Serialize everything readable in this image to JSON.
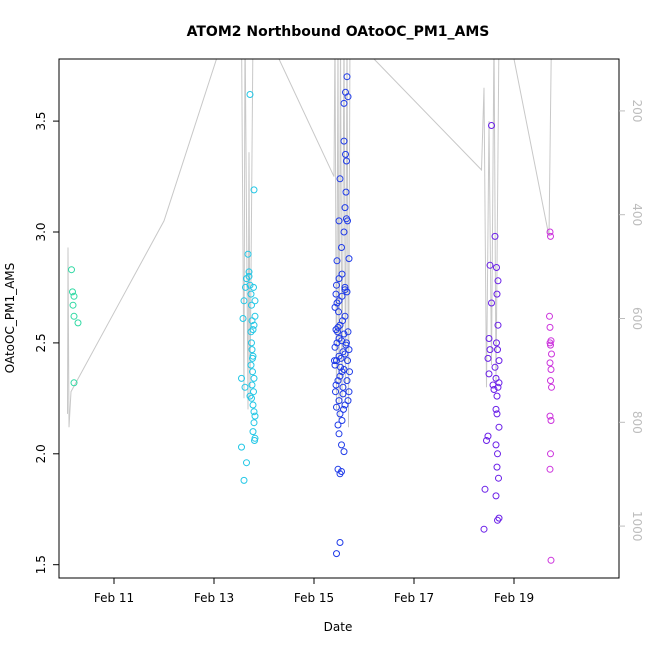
{
  "chart_data": {
    "type": "scatter",
    "title": "ATOM2 Northbound OAtoOC_PM1_AMS",
    "xlabel": "Date",
    "ylabel": "OAtoOC_PM1_AMS",
    "x_ticks": [
      {
        "x": 11,
        "label": "Feb 11"
      },
      {
        "x": 13,
        "label": "Feb 13"
      },
      {
        "x": 15,
        "label": "Feb 15"
      },
      {
        "x": 17,
        "label": "Feb 17"
      },
      {
        "x": 19,
        "label": "Feb 19"
      }
    ],
    "y_ticks": [
      "1.5",
      "2.0",
      "2.5",
      "3.0",
      "3.5"
    ],
    "right_ticks": [
      "200",
      "400",
      "600",
      "800",
      "1000"
    ],
    "xlim": [
      9.9,
      21.1
    ],
    "ylim": [
      1.44,
      3.78
    ],
    "right_axis_range": [
      100,
      1100
    ],
    "colors": {
      "flight1": "#2fd9a3",
      "flight2": "#22c7e6",
      "flight3": "#1f3be8",
      "flight4": "#6a1fe8",
      "flight5": "#cc33dd",
      "altitude_line": "#c8c8c8"
    },
    "series": [
      {
        "values": [
          [
            10.15,
            2.83
          ],
          [
            10.17,
            2.73
          ],
          [
            10.2,
            2.71
          ],
          [
            10.18,
            2.67
          ],
          [
            10.2,
            2.62
          ],
          [
            10.28,
            2.59
          ],
          [
            10.2,
            2.32
          ]
        ]
      },
      {
        "values": [
          [
            13.55,
            2.03
          ],
          [
            13.6,
            1.88
          ],
          [
            13.65,
            1.96
          ],
          [
            13.55,
            2.34
          ],
          [
            13.62,
            2.3
          ],
          [
            13.58,
            2.61
          ],
          [
            13.6,
            2.69
          ],
          [
            13.63,
            2.75
          ],
          [
            13.65,
            2.79
          ],
          [
            13.68,
            2.9
          ],
          [
            13.7,
            2.8
          ],
          [
            13.72,
            3.62
          ],
          [
            13.7,
            2.82
          ],
          [
            13.72,
            2.76
          ],
          [
            13.74,
            2.72
          ],
          [
            13.75,
            2.67
          ],
          [
            13.76,
            2.6
          ],
          [
            13.78,
            2.56
          ],
          [
            13.8,
            2.58
          ],
          [
            13.82,
            2.62
          ],
          [
            13.8,
            3.19
          ],
          [
            13.79,
            2.75
          ],
          [
            13.82,
            2.69
          ],
          [
            13.75,
            2.5
          ],
          [
            13.76,
            2.47
          ],
          [
            13.78,
            2.44
          ],
          [
            13.74,
            2.4
          ],
          [
            13.77,
            2.37
          ],
          [
            13.8,
            2.34
          ],
          [
            13.76,
            2.31
          ],
          [
            13.79,
            2.28
          ],
          [
            13.72,
            2.26
          ],
          [
            13.75,
            2.25
          ],
          [
            13.78,
            2.22
          ],
          [
            13.8,
            2.19
          ],
          [
            13.82,
            2.17
          ],
          [
            13.8,
            2.14
          ],
          [
            13.78,
            2.1
          ],
          [
            13.82,
            2.07
          ],
          [
            13.81,
            2.06
          ],
          [
            13.74,
            2.55
          ],
          [
            13.77,
            2.43
          ]
        ]
      },
      {
        "values": [
          [
            15.45,
            1.55
          ],
          [
            15.52,
            1.6
          ],
          [
            15.48,
            1.93
          ],
          [
            15.52,
            1.91
          ],
          [
            15.55,
            1.92
          ],
          [
            15.6,
            2.01
          ],
          [
            15.55,
            2.04
          ],
          [
            15.5,
            2.09
          ],
          [
            15.48,
            2.13
          ],
          [
            15.52,
            2.18
          ],
          [
            15.56,
            2.15
          ],
          [
            15.45,
            2.21
          ],
          [
            15.5,
            2.24
          ],
          [
            15.58,
            2.27
          ],
          [
            15.62,
            2.22
          ],
          [
            15.68,
            2.24
          ],
          [
            15.7,
            2.28
          ],
          [
            15.44,
            2.31
          ],
          [
            15.48,
            2.33
          ],
          [
            15.52,
            2.35
          ],
          [
            15.56,
            2.37
          ],
          [
            15.6,
            2.38
          ],
          [
            15.66,
            2.33
          ],
          [
            15.42,
            2.4
          ],
          [
            15.45,
            2.42
          ],
          [
            15.5,
            2.44
          ],
          [
            15.54,
            2.43
          ],
          [
            15.58,
            2.46
          ],
          [
            15.62,
            2.45
          ],
          [
            15.67,
            2.42
          ],
          [
            15.42,
            2.48
          ],
          [
            15.46,
            2.5
          ],
          [
            15.5,
            2.52
          ],
          [
            15.55,
            2.51
          ],
          [
            15.6,
            2.54
          ],
          [
            15.65,
            2.5
          ],
          [
            15.7,
            2.47
          ],
          [
            15.44,
            2.56
          ],
          [
            15.48,
            2.57
          ],
          [
            15.52,
            2.58
          ],
          [
            15.57,
            2.6
          ],
          [
            15.62,
            2.62
          ],
          [
            15.68,
            2.55
          ],
          [
            15.42,
            2.66
          ],
          [
            15.46,
            2.68
          ],
          [
            15.5,
            2.69
          ],
          [
            15.56,
            2.71
          ],
          [
            15.62,
            2.74
          ],
          [
            15.66,
            2.73
          ],
          [
            15.45,
            2.76
          ],
          [
            15.5,
            2.79
          ],
          [
            15.56,
            2.81
          ],
          [
            15.62,
            2.75
          ],
          [
            15.46,
            2.87
          ],
          [
            15.7,
            2.88
          ],
          [
            15.55,
            2.93
          ],
          [
            15.6,
            3.0
          ],
          [
            15.5,
            3.05
          ],
          [
            15.65,
            3.06
          ],
          [
            15.67,
            3.05
          ],
          [
            15.62,
            3.11
          ],
          [
            15.64,
            3.18
          ],
          [
            15.52,
            3.24
          ],
          [
            15.65,
            3.32
          ],
          [
            15.63,
            3.35
          ],
          [
            15.6,
            3.41
          ],
          [
            15.6,
            3.58
          ],
          [
            15.63,
            3.63
          ],
          [
            15.68,
            3.61
          ],
          [
            15.66,
            3.7
          ],
          [
            15.44,
            2.72
          ],
          [
            15.47,
            2.55
          ],
          [
            15.53,
            2.39
          ],
          [
            15.58,
            2.3
          ],
          [
            15.64,
            2.49
          ],
          [
            15.41,
            2.42
          ],
          [
            15.49,
            2.64
          ],
          [
            15.71,
            2.37
          ],
          [
            15.43,
            2.28
          ],
          [
            15.59,
            2.2
          ]
        ]
      },
      {
        "values": [
          [
            18.4,
            1.66
          ],
          [
            18.42,
            1.84
          ],
          [
            18.45,
            2.06
          ],
          [
            18.48,
            2.08
          ],
          [
            18.5,
            2.36
          ],
          [
            18.48,
            2.43
          ],
          [
            18.52,
            2.47
          ],
          [
            18.5,
            2.52
          ],
          [
            18.55,
            2.68
          ],
          [
            18.52,
            2.85
          ],
          [
            18.55,
            3.48
          ],
          [
            18.62,
            2.98
          ],
          [
            18.65,
            2.84
          ],
          [
            18.68,
            2.78
          ],
          [
            18.66,
            2.72
          ],
          [
            18.68,
            2.58
          ],
          [
            18.65,
            2.5
          ],
          [
            18.67,
            2.47
          ],
          [
            18.7,
            2.42
          ],
          [
            18.64,
            2.34
          ],
          [
            18.7,
            2.32
          ],
          [
            18.68,
            2.3
          ],
          [
            18.6,
            2.29
          ],
          [
            18.66,
            2.26
          ],
          [
            18.64,
            2.2
          ],
          [
            18.66,
            2.18
          ],
          [
            18.64,
            2.04
          ],
          [
            18.67,
            2.0
          ],
          [
            18.66,
            1.94
          ],
          [
            18.69,
            1.89
          ],
          [
            18.64,
            1.81
          ],
          [
            18.67,
            1.7
          ],
          [
            18.7,
            1.71
          ],
          [
            18.62,
            2.39
          ],
          [
            18.7,
            2.12
          ],
          [
            18.58,
            2.31
          ]
        ]
      },
      {
        "values": [
          [
            19.72,
            3.0
          ],
          [
            19.73,
            2.98
          ],
          [
            19.71,
            2.62
          ],
          [
            19.72,
            2.57
          ],
          [
            19.74,
            2.51
          ],
          [
            19.72,
            2.5
          ],
          [
            19.73,
            2.49
          ],
          [
            19.75,
            2.45
          ],
          [
            19.72,
            2.41
          ],
          [
            19.74,
            2.38
          ],
          [
            19.73,
            2.33
          ],
          [
            19.75,
            2.3
          ],
          [
            19.72,
            2.17
          ],
          [
            19.74,
            2.15
          ],
          [
            19.73,
            2.0
          ],
          [
            19.72,
            1.93
          ],
          [
            19.74,
            1.52
          ]
        ]
      }
    ]
  }
}
